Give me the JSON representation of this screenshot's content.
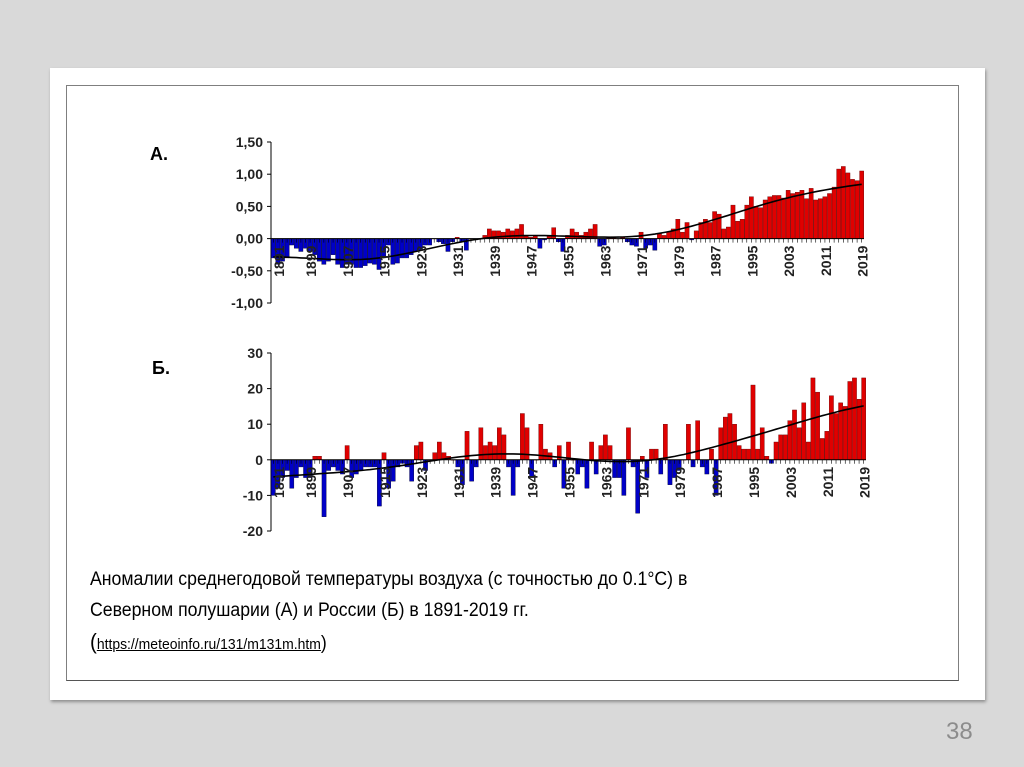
{
  "slide": {
    "page_number": "38",
    "caption_line1": "Аномалии среднегодовой температуры воздуха (с точностью до 0.1°C) в",
    "caption_line2": "Северном полушарии (А) и России (Б) в 1891-2019 гг.",
    "open_paren": "(",
    "link": "https://meteoinfo.ru/131/m131m.htm",
    "close_paren": ")"
  },
  "chart_data": [
    {
      "type": "bar",
      "panel_label": "А.",
      "title": "",
      "xlabel": "",
      "ylabel": "",
      "ylim": [
        -1.0,
        1.5
      ],
      "yticks": [
        "1,50",
        "1,00",
        "0,50",
        "0,00",
        "-0,50",
        "-1,00"
      ],
      "ytick_values": [
        1.5,
        1.0,
        0.5,
        0.0,
        -0.5,
        -1.0
      ],
      "xtick_labels": [
        "1891",
        "1899",
        "1907",
        "1915",
        "1923",
        "1931",
        "1939",
        "1947",
        "1955",
        "1963",
        "1971",
        "1979",
        "1987",
        "1995",
        "2003",
        "2011",
        "2019"
      ],
      "x_start": 1891,
      "x_end": 2019,
      "positive_color": "#e00000",
      "negative_color": "#0000c8",
      "trend_color": "#000000",
      "values": [
        -0.3,
        -0.4,
        -0.35,
        -0.3,
        -0.1,
        -0.15,
        -0.2,
        -0.15,
        -0.2,
        -0.25,
        -0.35,
        -0.4,
        -0.35,
        -0.25,
        -0.4,
        -0.45,
        -0.4,
        -0.4,
        -0.45,
        -0.45,
        -0.42,
        -0.38,
        -0.4,
        -0.48,
        -0.3,
        -0.1,
        -0.4,
        -0.38,
        -0.3,
        -0.3,
        -0.25,
        -0.2,
        -0.18,
        -0.1,
        -0.1,
        0.0,
        -0.05,
        -0.08,
        -0.2,
        -0.05,
        0.02,
        -0.05,
        -0.18,
        0.0,
        -0.02,
        0.0,
        0.05,
        0.15,
        0.12,
        0.12,
        0.1,
        0.15,
        0.12,
        0.15,
        0.22,
        0.05,
        0.02,
        0.05,
        -0.15,
        -0.02,
        0.05,
        0.17,
        -0.05,
        -0.2,
        0.05,
        0.15,
        0.1,
        0.05,
        0.1,
        0.15,
        0.22,
        -0.12,
        -0.1,
        0.02,
        0.03,
        0.0,
        0.02,
        -0.05,
        -0.1,
        -0.12,
        0.1,
        -0.15,
        -0.1,
        -0.18,
        0.08,
        0.05,
        0.1,
        0.15,
        0.3,
        0.1,
        0.25,
        -0.02,
        0.12,
        0.25,
        0.3,
        0.25,
        0.42,
        0.38,
        0.15,
        0.18,
        0.52,
        0.27,
        0.3,
        0.52,
        0.65,
        0.5,
        0.48,
        0.6,
        0.65,
        0.67,
        0.67,
        0.63,
        0.75,
        0.7,
        0.72,
        0.75,
        0.62,
        0.78,
        0.6,
        0.62,
        0.65,
        0.7,
        0.8,
        1.08,
        1.12,
        1.02,
        0.92,
        0.9,
        1.05
      ]
    },
    {
      "type": "bar",
      "panel_label": "Б.",
      "title": "",
      "xlabel": "",
      "ylabel": "",
      "ylim": [
        -20,
        30
      ],
      "yticks": [
        "30",
        "20",
        "10",
        "0",
        "-10",
        "-20"
      ],
      "ytick_values": [
        30,
        20,
        10,
        0,
        -10,
        -20
      ],
      "xtick_labels": [
        "1891",
        "1899",
        "1907",
        "1915",
        "1923",
        "1931",
        "1939",
        "1947",
        "1955",
        "1963",
        "1971",
        "1979",
        "1987",
        "1995",
        "2003",
        "2011",
        "2019"
      ],
      "x_start": 1891,
      "x_end": 2019,
      "positive_color": "#e00000",
      "negative_color": "#0000c8",
      "trend_color": "#000000",
      "values": [
        -10,
        -8,
        -5,
        -3,
        -8,
        -5,
        -2,
        -5,
        -5,
        1,
        1,
        -16,
        -3,
        -2,
        -3,
        -4,
        4,
        -5,
        -4,
        -3,
        -2,
        -2,
        -2,
        -13,
        2,
        -8,
        -6,
        -2,
        -1,
        -2,
        -6,
        4,
        5,
        -3,
        0,
        2,
        5,
        2,
        1,
        0,
        -2,
        -7,
        8,
        -6,
        -2,
        9,
        4,
        5,
        4,
        9,
        7,
        -2,
        -10,
        -2,
        13,
        9,
        -5,
        0,
        10,
        3,
        2,
        -2,
        4,
        -8,
        5,
        0,
        -4,
        -2,
        -8,
        5,
        -4,
        4,
        7,
        4,
        -5,
        -5,
        -10,
        9,
        -2,
        -15,
        1,
        -5,
        3,
        3,
        -4,
        10,
        -7,
        -5,
        -3,
        0,
        10,
        -2,
        11,
        -2,
        -4,
        3,
        -10,
        9,
        12,
        13,
        10,
        4,
        3,
        3,
        21,
        3,
        9,
        1,
        -1,
        5,
        7,
        7,
        11,
        14,
        9,
        16,
        5,
        23,
        19,
        6,
        8,
        18,
        13,
        16,
        15,
        22,
        23,
        17,
        23
      ]
    }
  ]
}
